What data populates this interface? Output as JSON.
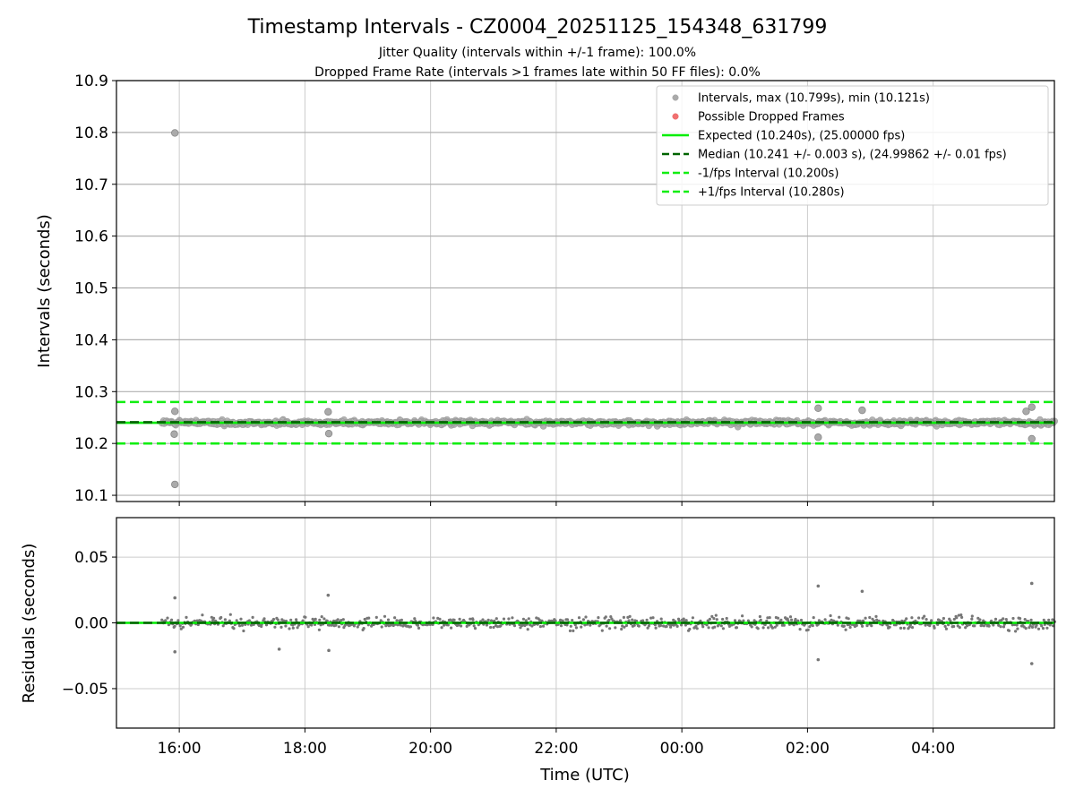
{
  "chart_data": [
    {
      "type": "scatter",
      "id": "intervals",
      "title": "Timestamp Intervals - CZ0004_20251125_154348_631799",
      "subtitle_lines": [
        "Jitter Quality (intervals within +/-1 frame): 100.0%",
        "Dropped Frame Rate (intervals >1 frames late within 50 FF files): 0.0%"
      ],
      "ylabel": "Intervals (seconds)",
      "ylim": [
        10.088,
        10.9
      ],
      "xlim_hours": [
        15.0,
        29.93
      ],
      "yticks": [
        {
          "v": 10.1,
          "label": "10.1"
        },
        {
          "v": 10.2,
          "label": "10.2"
        },
        {
          "v": 10.3,
          "label": "10.3"
        },
        {
          "v": 10.4,
          "label": "10.4"
        },
        {
          "v": 10.5,
          "label": "10.5"
        },
        {
          "v": 10.6,
          "label": "10.6"
        },
        {
          "v": 10.7,
          "label": "10.7"
        },
        {
          "v": 10.8,
          "label": "10.8"
        },
        {
          "v": 10.9,
          "label": "10.9"
        }
      ],
      "grid": true,
      "reference_lines": [
        {
          "name": "Expected",
          "y": 10.24,
          "color": "#00ee00",
          "style": "solid"
        },
        {
          "name": "Median",
          "y": 10.241,
          "color": "#006400",
          "style": "dashed"
        },
        {
          "name": "-1/fps Interval",
          "y": 10.2,
          "color": "#11ee11",
          "style": "dashed"
        },
        {
          "name": "+1/fps Interval",
          "y": 10.28,
          "color": "#11ee11",
          "style": "dashed"
        }
      ],
      "data_range_hours": [
        15.73,
        29.93
      ],
      "center_value": 10.24,
      "noise_sd": 0.006,
      "outliers": [
        {
          "x": 15.93,
          "y": 10.799
        },
        {
          "x": 15.93,
          "y": 10.121
        },
        {
          "x": 15.93,
          "y": 10.262
        },
        {
          "x": 15.92,
          "y": 10.218
        },
        {
          "x": 26.17,
          "y": 10.268
        },
        {
          "x": 26.17,
          "y": 10.212
        },
        {
          "x": 26.87,
          "y": 10.264
        },
        {
          "x": 29.57,
          "y": 10.27
        },
        {
          "x": 29.57,
          "y": 10.209
        },
        {
          "x": 29.48,
          "y": 10.262
        },
        {
          "x": 18.37,
          "y": 10.261
        },
        {
          "x": 18.38,
          "y": 10.219
        }
      ],
      "point_color": "#999999",
      "legend": {
        "position": "top-right",
        "entries": [
          {
            "label": "Intervals, max (10.799s), min (10.121s)",
            "kind": "marker",
            "color": "#aaaaaa"
          },
          {
            "label": "Possible Dropped Frames",
            "kind": "marker",
            "color": "#f07070"
          },
          {
            "label": "Expected (10.240s), (25.00000 fps)",
            "kind": "solid",
            "color": "#00ee00"
          },
          {
            "label": "Median (10.241 +/- 0.003 s), (24.99862 +/- 0.01 fps)",
            "kind": "dashed",
            "color": "#006400"
          },
          {
            "label": "-1/fps Interval (10.200s)",
            "kind": "dashed",
            "color": "#11ee11"
          },
          {
            "label": "+1/fps Interval (10.280s)",
            "kind": "dashed",
            "color": "#11ee11"
          }
        ]
      }
    },
    {
      "type": "scatter",
      "id": "residuals",
      "xlabel": "Time (UTC)",
      "ylabel": "Residuals (seconds)",
      "ylim": [
        -0.08,
        0.08
      ],
      "xlim_hours": [
        15.0,
        29.93
      ],
      "yticks": [
        {
          "v": 0.05,
          "label": "0.05"
        },
        {
          "v": 0.0,
          "label": "0.00"
        },
        {
          "v": -0.05,
          "label": "−0.05"
        }
      ],
      "xticks": [
        {
          "v": 16,
          "label": "16:00"
        },
        {
          "v": 18,
          "label": "18:00"
        },
        {
          "v": 20,
          "label": "20:00"
        },
        {
          "v": 22,
          "label": "22:00"
        },
        {
          "v": 24,
          "label": "00:00"
        },
        {
          "v": 26,
          "label": "02:00"
        },
        {
          "v": 28,
          "label": "04:00"
        }
      ],
      "grid": true,
      "reference_lines": [
        {
          "name": "zero-expected",
          "y": 0.0,
          "color": "#00ee00",
          "style": "solid"
        },
        {
          "name": "zero-median",
          "y": 0.0,
          "color": "#006400",
          "style": "dashed"
        }
      ],
      "noise_sd": 0.006,
      "outliers": [
        {
          "x": 15.93,
          "y": -0.022
        },
        {
          "x": 15.93,
          "y": 0.019
        },
        {
          "x": 26.17,
          "y": 0.028
        },
        {
          "x": 26.17,
          "y": -0.028
        },
        {
          "x": 26.87,
          "y": 0.024
        },
        {
          "x": 29.57,
          "y": 0.03
        },
        {
          "x": 29.57,
          "y": -0.031
        },
        {
          "x": 18.37,
          "y": 0.021
        },
        {
          "x": 18.38,
          "y": -0.021
        },
        {
          "x": 17.59,
          "y": -0.02
        }
      ],
      "point_color": "#777777"
    }
  ]
}
